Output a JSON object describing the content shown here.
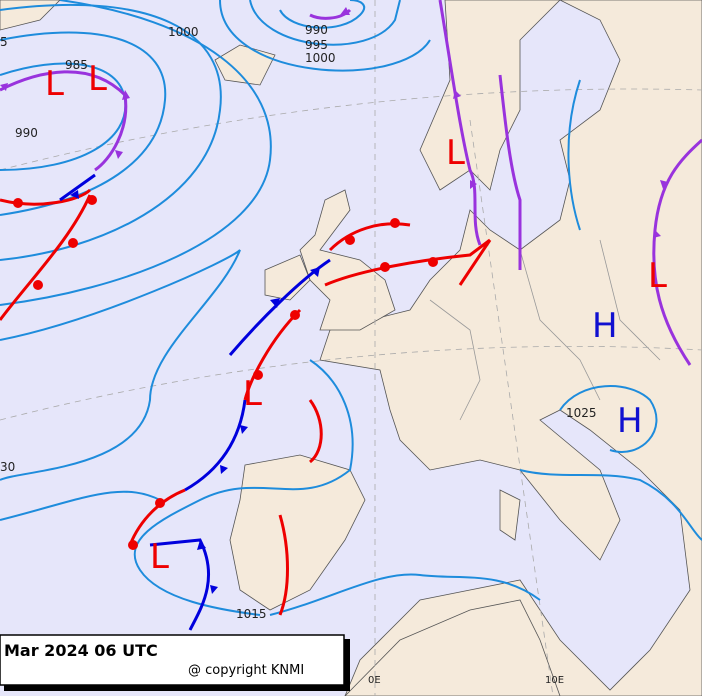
{
  "isobar_labels": [
    "1000",
    "990",
    "995",
    "1000",
    "985",
    "990",
    "1025",
    "1015",
    "5",
    "30"
  ],
  "pressure_centers": [
    "L",
    "L",
    "L",
    "L",
    "L",
    "L",
    "H",
    "H"
  ],
  "longitude_labels": [
    "0E",
    "10E"
  ],
  "caption": {
    "date": "Mar 2024 06 UTC",
    "copyright": "@ copyright KNMI"
  }
}
